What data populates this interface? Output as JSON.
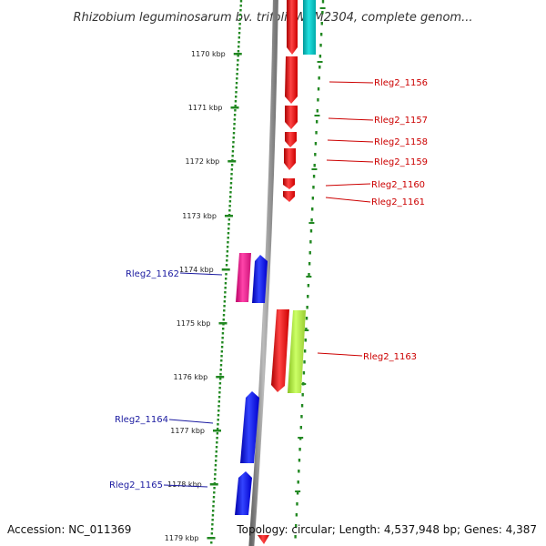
{
  "title": "Rhizobium leguminosarum bv. trifolii WSM2304, complete genom...",
  "accession": "Accession: NC_011369",
  "topology": "Topology: circular; Length: 4,537,948 bp; Genes: 4,387",
  "ticks": [
    "1170 kbp",
    "1171 kbp",
    "1172 kbp",
    "1173 kbp",
    "1174 kbp",
    "1175 kbp",
    "1176 kbp",
    "1177 kbp",
    "1178 kbp",
    "1179 kbp"
  ],
  "genes_right": [
    "Rleg2_1156",
    "Rleg2_1157",
    "Rleg2_1158",
    "Rleg2_1159",
    "Rleg2_1160",
    "Rleg2_1161",
    "Rleg2_1163"
  ],
  "genes_left": [
    "Rleg2_1162",
    "Rleg2_1164",
    "Rleg2_1165"
  ],
  "colors": {
    "forward": "#ff0000",
    "reverse": "#0000ff",
    "cyan": "#00cccc",
    "magenta": "#ee1188",
    "lime": "#a8e63c",
    "backbone": "#888888",
    "dots": "#228822",
    "label_red": "#cc0000",
    "label_blue": "#1a1aa0"
  }
}
